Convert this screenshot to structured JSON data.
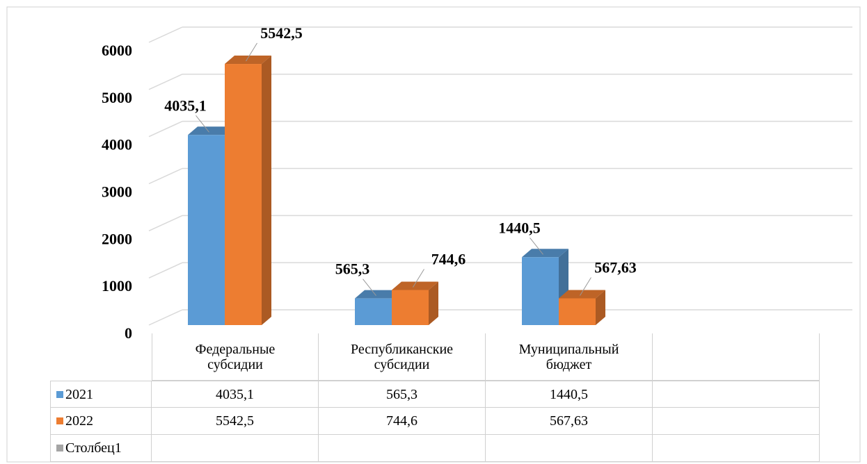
{
  "chart_data": {
    "type": "bar3d",
    "categories": [
      "Федеральные субсидии",
      "Республиканские субсидии",
      "Муниципальный бюджет",
      null
    ],
    "series": [
      {
        "name": "2021",
        "color": "#5b9bd5",
        "values": [
          4035.1,
          565.3,
          1440.5,
          null
        ],
        "value_labels": [
          "4035,1",
          "565,3",
          "1440,5",
          null
        ]
      },
      {
        "name": "2022",
        "color": "#ed7d31",
        "values": [
          5542.5,
          744.6,
          567.63,
          null
        ],
        "value_labels": [
          "5542,5",
          "744,6",
          "567,63",
          null
        ]
      },
      {
        "name": "Столбец1",
        "color": "#a5a5a5",
        "values": [
          null,
          null,
          null,
          null
        ],
        "value_labels": [
          null,
          null,
          null,
          null
        ]
      }
    ],
    "ylim": [
      0,
      6000
    ],
    "yticks": [
      0,
      1000,
      2000,
      3000,
      4000,
      5000,
      6000
    ],
    "grid": true,
    "data_table": true
  }
}
